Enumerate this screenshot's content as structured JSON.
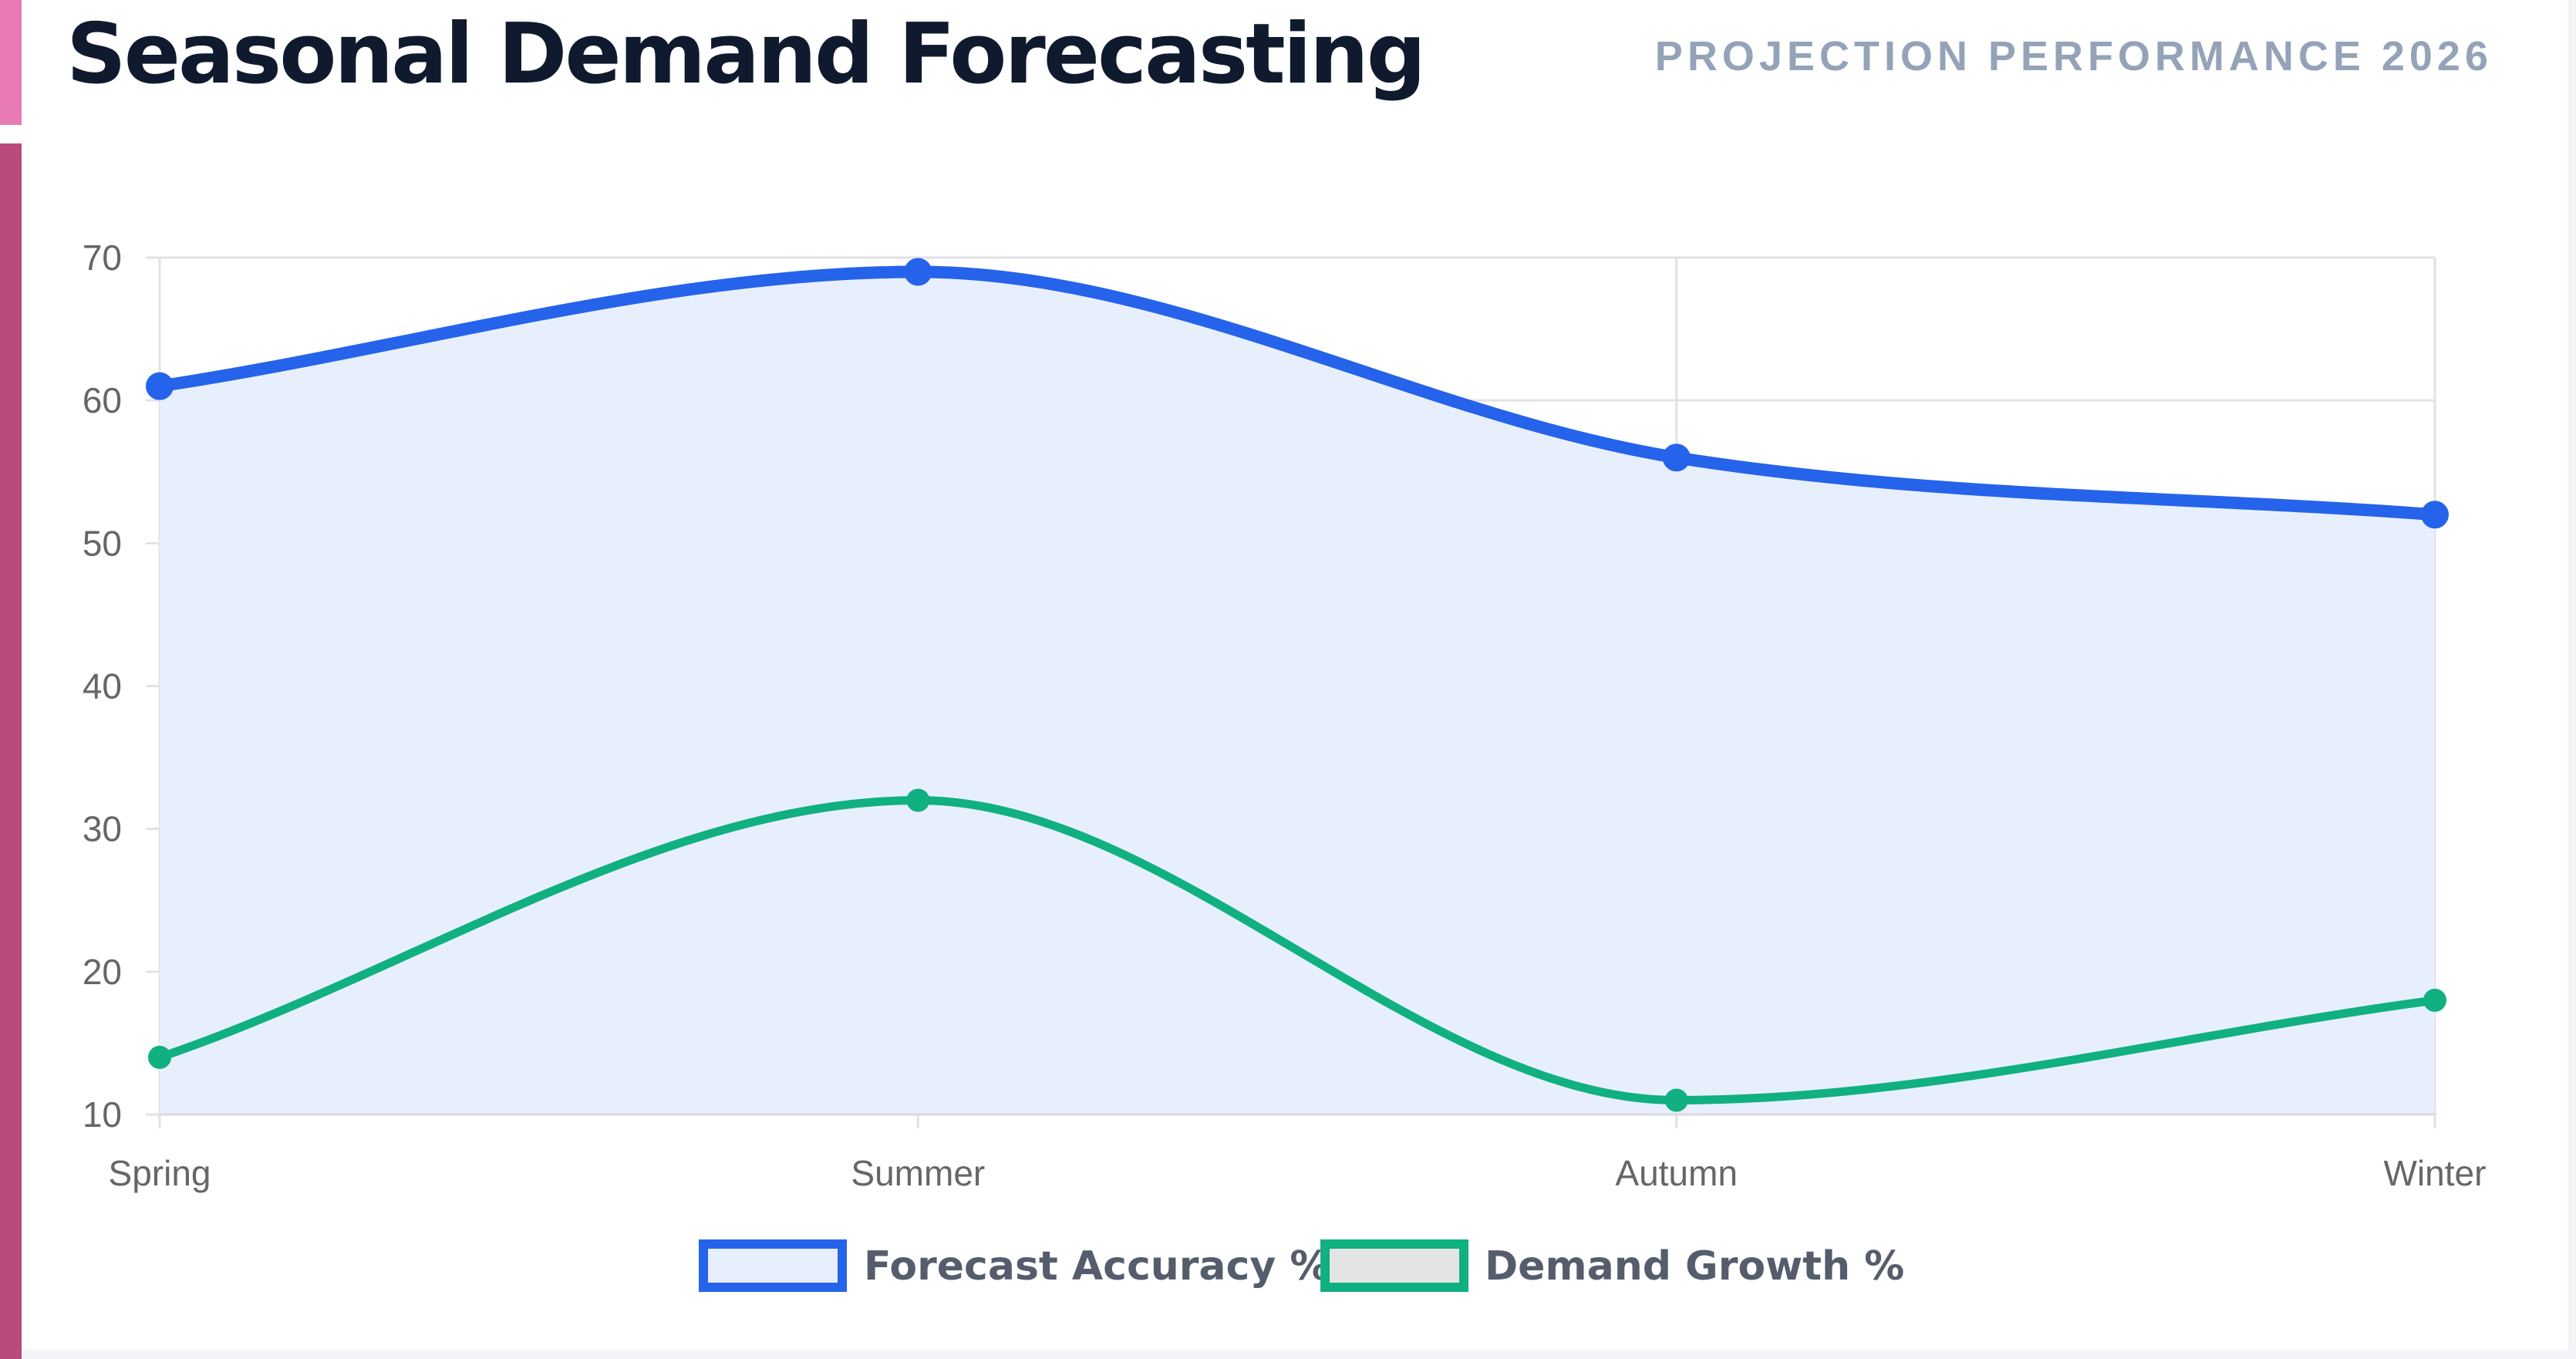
{
  "header": {
    "title": "Seasonal Demand Forecasting",
    "subtitle": "PROJECTION PERFORMANCE 2026"
  },
  "chart_data": {
    "type": "line",
    "title": "Seasonal Demand Forecasting",
    "subtitle": "PROJECTION PERFORMANCE 2026",
    "categories": [
      "Spring",
      "Summer",
      "Autumn",
      "Winter"
    ],
    "ylim": [
      10,
      70
    ],
    "yticks": [
      10,
      20,
      30,
      40,
      50,
      60,
      70
    ],
    "grid": true,
    "legend_position": "bottom",
    "series": [
      {
        "name": "Forecast Accuracy %",
        "values": [
          61,
          69,
          56,
          52
        ],
        "color": "#2563eb",
        "fill": "#e7eefc",
        "filled": true
      },
      {
        "name": "Demand Growth %",
        "values": [
          14,
          32,
          11,
          18
        ],
        "color": "#10b081",
        "fill": "#e4e4e4",
        "filled": false
      }
    ]
  }
}
